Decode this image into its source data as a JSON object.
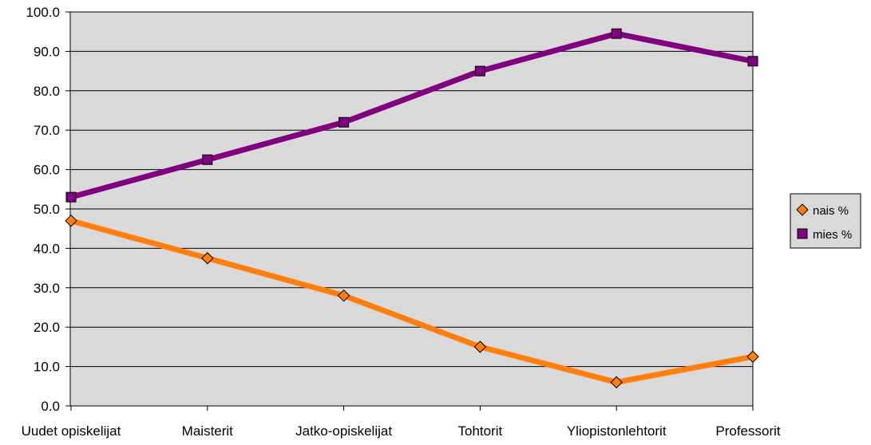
{
  "chart_data": {
    "type": "line",
    "categories": [
      "Uudet opiskelijat",
      "Maisterit",
      "Jatko-opiskelijat",
      "Tohtorit",
      "Yliopistonlehtorit",
      "Professorit"
    ],
    "series": [
      {
        "name": "nais %",
        "values": [
          47.0,
          37.5,
          28.0,
          15.0,
          6.0,
          12.5
        ],
        "color": "#ff7f0e",
        "marker": "diamond"
      },
      {
        "name": "mies %",
        "values": [
          53.0,
          62.5,
          72.0,
          85.0,
          94.5,
          87.5
        ],
        "color": "#800080",
        "marker": "square"
      }
    ],
    "ylim": [
      0,
      100
    ],
    "yticks": [
      "0.0",
      "10.0",
      "20.0",
      "30.0",
      "40.0",
      "50.0",
      "60.0",
      "70.0",
      "80.0",
      "90.0",
      "100.0"
    ],
    "grid": true,
    "plot_background": "#d9d9d9",
    "legend_position": "right",
    "title": "",
    "xlabel": "",
    "ylabel": ""
  }
}
